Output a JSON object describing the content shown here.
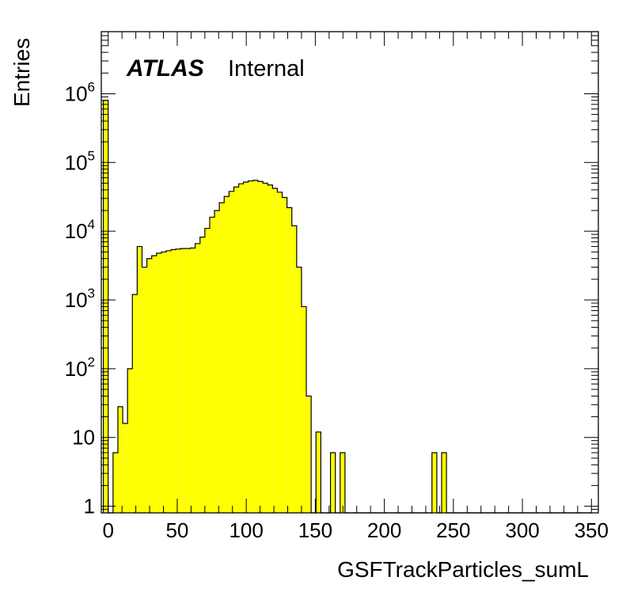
{
  "chart_data": {
    "type": "bar",
    "style": "histogram",
    "experiment_label": "ATLAS",
    "status_label": "Internal",
    "xlabel": "GSFTrackParticles_sumL",
    "ylabel": "Entries",
    "xlim": [
      -5,
      355
    ],
    "ylim": [
      0.8,
      8000000
    ],
    "yscale": "log",
    "grid": false,
    "bin_width": 3.5,
    "x_ticks": [
      0,
      50,
      100,
      150,
      200,
      250,
      300,
      350
    ],
    "x_tick_labels": [
      "0",
      "50",
      "100",
      "150",
      "200",
      "250",
      "300",
      "350"
    ],
    "y_tick_values": [
      1,
      10,
      100,
      1000,
      10000,
      100000,
      1000000
    ],
    "y_tick_labels": [
      {
        "base": "1",
        "exp": ""
      },
      {
        "base": "10",
        "exp": ""
      },
      {
        "base": "10",
        "exp": "2"
      },
      {
        "base": "10",
        "exp": "3"
      },
      {
        "base": "10",
        "exp": "4"
      },
      {
        "base": "10",
        "exp": "5"
      },
      {
        "base": "10",
        "exp": "6"
      }
    ],
    "fill_color": "#ffff00",
    "line_color": "#000000",
    "bin_edges": [
      -3.5,
      0,
      3.5,
      7,
      10.5,
      14,
      17.5,
      21,
      24.5,
      28,
      31.5,
      35,
      38.5,
      42,
      45.5,
      49,
      52.5,
      56,
      59.5,
      63,
      66.5,
      70,
      73.5,
      77,
      80.5,
      84,
      87.5,
      91,
      94.5,
      98,
      101.5,
      105,
      108.5,
      112,
      115.5,
      119,
      122.5,
      126,
      129.5,
      133,
      136.5,
      140,
      143.5,
      147,
      150.5,
      154,
      157.5,
      161,
      164.5,
      168,
      171.5,
      175,
      178.5,
      182,
      185.5,
      189,
      192.5,
      196,
      199.5,
      203,
      206.5,
      210,
      213.5,
      217,
      220.5,
      224,
      227.5,
      231,
      234.5,
      238,
      241.5,
      245,
      248.5,
      252,
      255.5,
      259,
      262.5,
      266,
      269.5,
      273,
      276.5,
      280,
      283.5,
      287,
      290.5,
      294,
      297.5,
      301,
      304.5,
      308,
      311.5,
      315,
      318.5,
      322,
      325.5,
      329,
      332.5,
      336,
      339.5,
      343,
      346.5,
      350
    ],
    "values": [
      800000,
      0,
      6,
      28,
      16,
      100,
      1200,
      6000,
      3000,
      4000,
      4400,
      4800,
      5000,
      5200,
      5400,
      5500,
      5600,
      5600,
      5700,
      6600,
      8200,
      11000,
      16000,
      20000,
      26000,
      32000,
      38000,
      44000,
      49000,
      52000,
      54000,
      55000,
      53000,
      50000,
      47000,
      42000,
      37000,
      31000,
      22000,
      12000,
      3000,
      800,
      40,
      0.6,
      12,
      0,
      0,
      6,
      0,
      6,
      0,
      0,
      0,
      0,
      0,
      0,
      0,
      0,
      0,
      0,
      0,
      0,
      0,
      0,
      0,
      0,
      0,
      0,
      6,
      0,
      6,
      0,
      0,
      0,
      0,
      0,
      0,
      0,
      0,
      0,
      0,
      0,
      0,
      0,
      0,
      0,
      0,
      0,
      0,
      0,
      0,
      0,
      0,
      0,
      0,
      0,
      0,
      0,
      0,
      0,
      0
    ]
  }
}
